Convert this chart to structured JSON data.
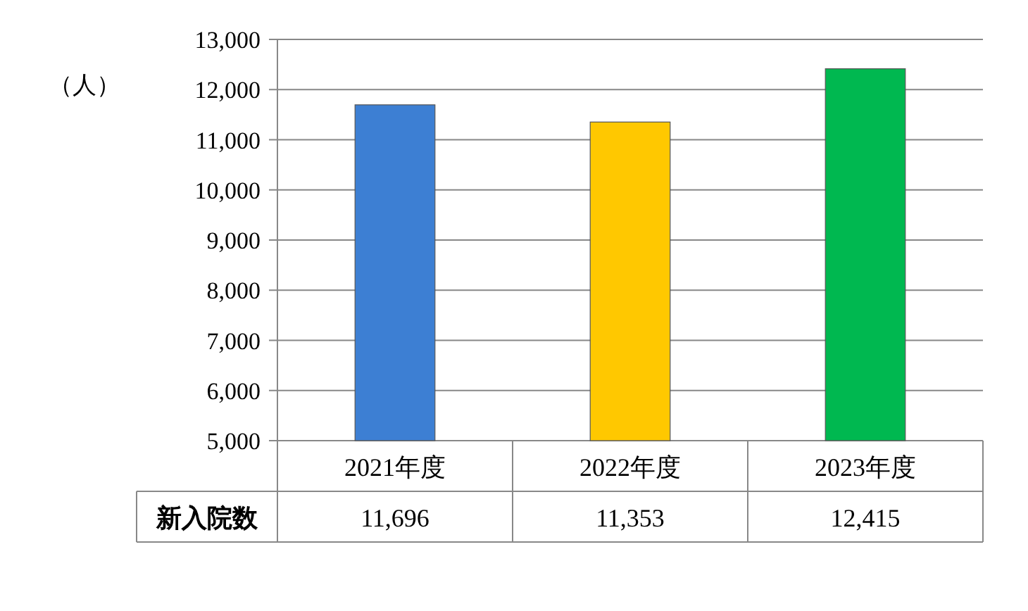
{
  "chart_data": {
    "type": "bar",
    "ylabel": "（人）",
    "categories": [
      "2021年度",
      "2022年度",
      "2023年度"
    ],
    "series": [
      {
        "name": "新入院数",
        "colors": [
          "#3d7fd3",
          "#ffc800",
          "#00b850"
        ],
        "values": [
          11696,
          11353,
          12415
        ],
        "value_labels": [
          "11,696",
          "11,353",
          "12,415"
        ]
      }
    ],
    "ylim": [
      5000,
      13000
    ],
    "yticks": [
      {
        "value": 5000,
        "label": "5,000"
      },
      {
        "value": 6000,
        "label": "6,000"
      },
      {
        "value": 7000,
        "label": "7,000"
      },
      {
        "value": 8000,
        "label": "8,000"
      },
      {
        "value": 9000,
        "label": "9,000"
      },
      {
        "value": 10000,
        "label": "10,000"
      },
      {
        "value": 11000,
        "label": "11,000"
      },
      {
        "value": 12000,
        "label": "12,000"
      },
      {
        "value": 13000,
        "label": "13,000"
      }
    ],
    "grid": "y"
  }
}
